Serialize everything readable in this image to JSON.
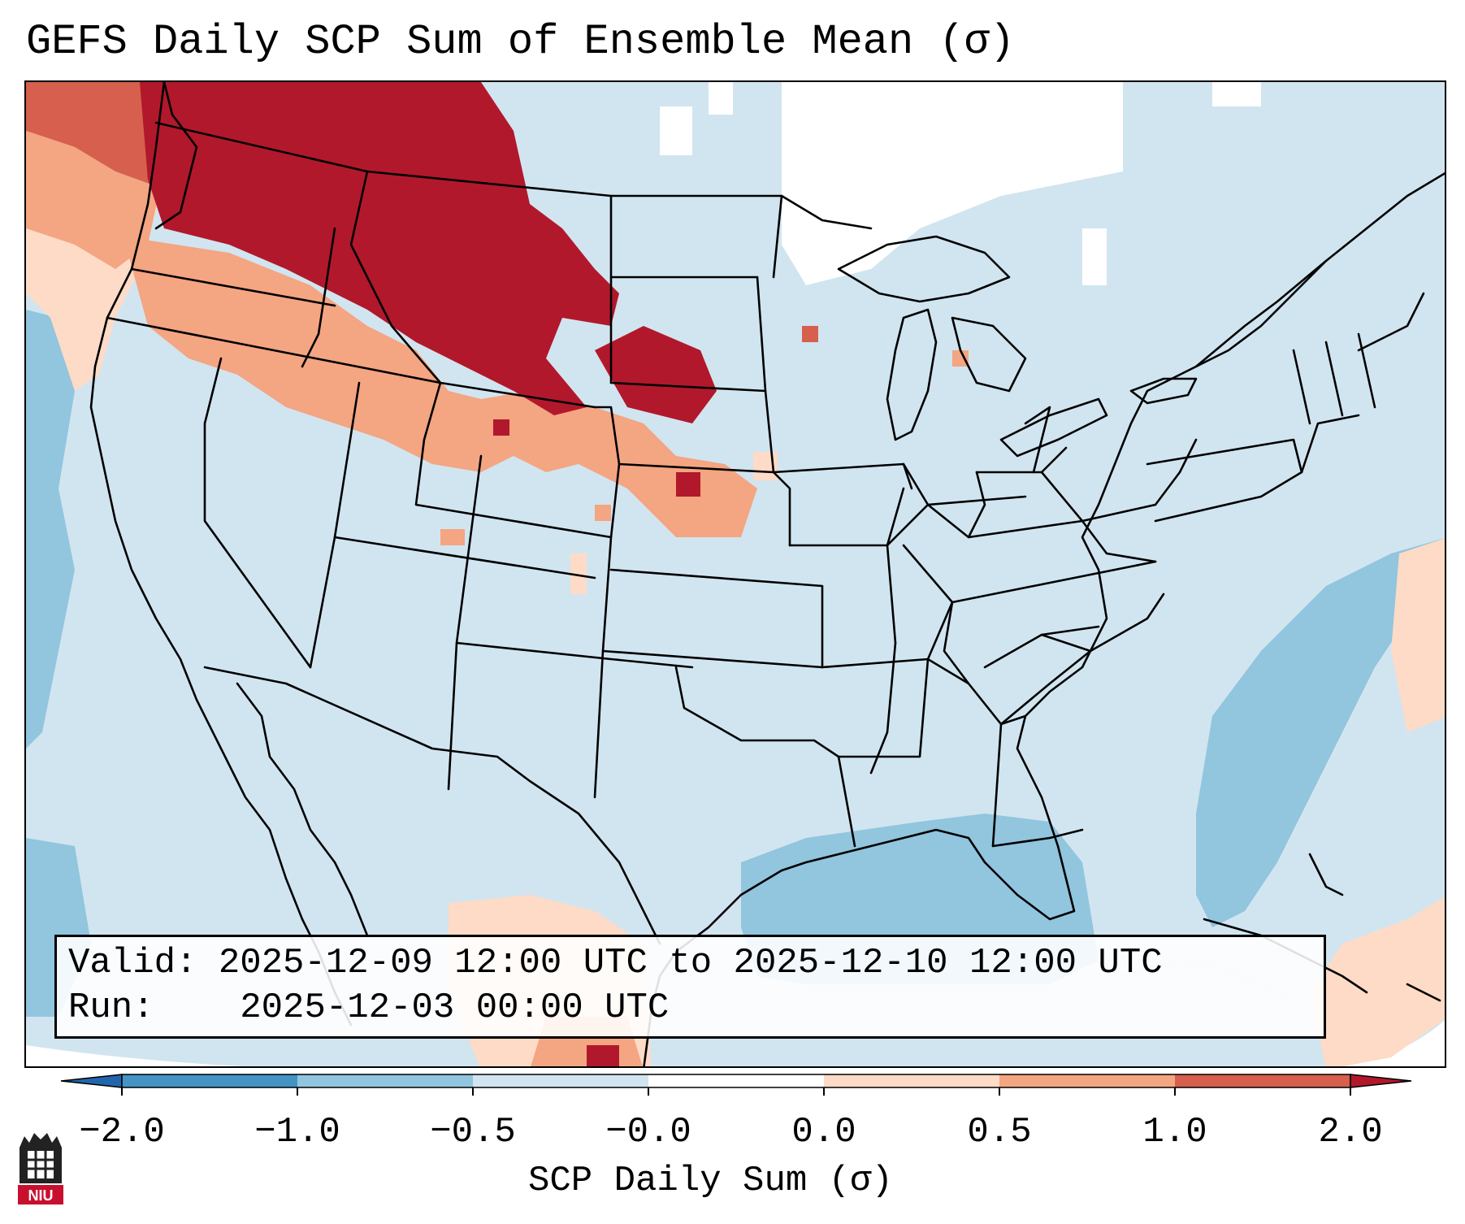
{
  "title": "GEFS Daily SCP Sum of Ensemble Mean (σ)",
  "info": {
    "valid_label": "Valid:",
    "valid_value": "2025-12-09 12:00 UTC to 2025-12-10 12:00 UTC",
    "run_label": "Run:",
    "run_value": "2025-12-03 00:00 UTC"
  },
  "colorbar": {
    "title": "SCP Daily Sum (σ)",
    "tick_labels": [
      "−2.0",
      "−1.0",
      "−0.5",
      "−0.0",
      "0.0",
      "0.5",
      "1.0",
      "2.0"
    ],
    "bins": [
      {
        "from": -2.0,
        "to": -1.0,
        "color": "#4393c3"
      },
      {
        "from": -1.0,
        "to": -0.5,
        "color": "#92c5de"
      },
      {
        "from": -0.5,
        "to": -0.0,
        "color": "#d1e5f0"
      },
      {
        "from": -0.0,
        "to": 0.0,
        "color": "#ffffff"
      },
      {
        "from": 0.0,
        "to": 0.5,
        "color": "#fddbc7"
      },
      {
        "from": 0.5,
        "to": 1.0,
        "color": "#f4a582"
      },
      {
        "from": 1.0,
        "to": 2.0,
        "color": "#d6604d"
      }
    ],
    "extend_low_color": "#2166ac",
    "extend_high_color": "#b2182b"
  },
  "map": {
    "background_color": "#d1e5f0",
    "region": "Contiguous United States",
    "feature_colors": {
      "high_anomaly": "#b2182b",
      "moderate_anomaly": "#d6604d",
      "light_anomaly": "#f4a582",
      "slight_anomaly": "#fddbc7",
      "negative_anomaly": "#92c5de",
      "no_data": "#ffffff"
    }
  },
  "logo": {
    "text": "NIU",
    "color": "#c8102e"
  }
}
